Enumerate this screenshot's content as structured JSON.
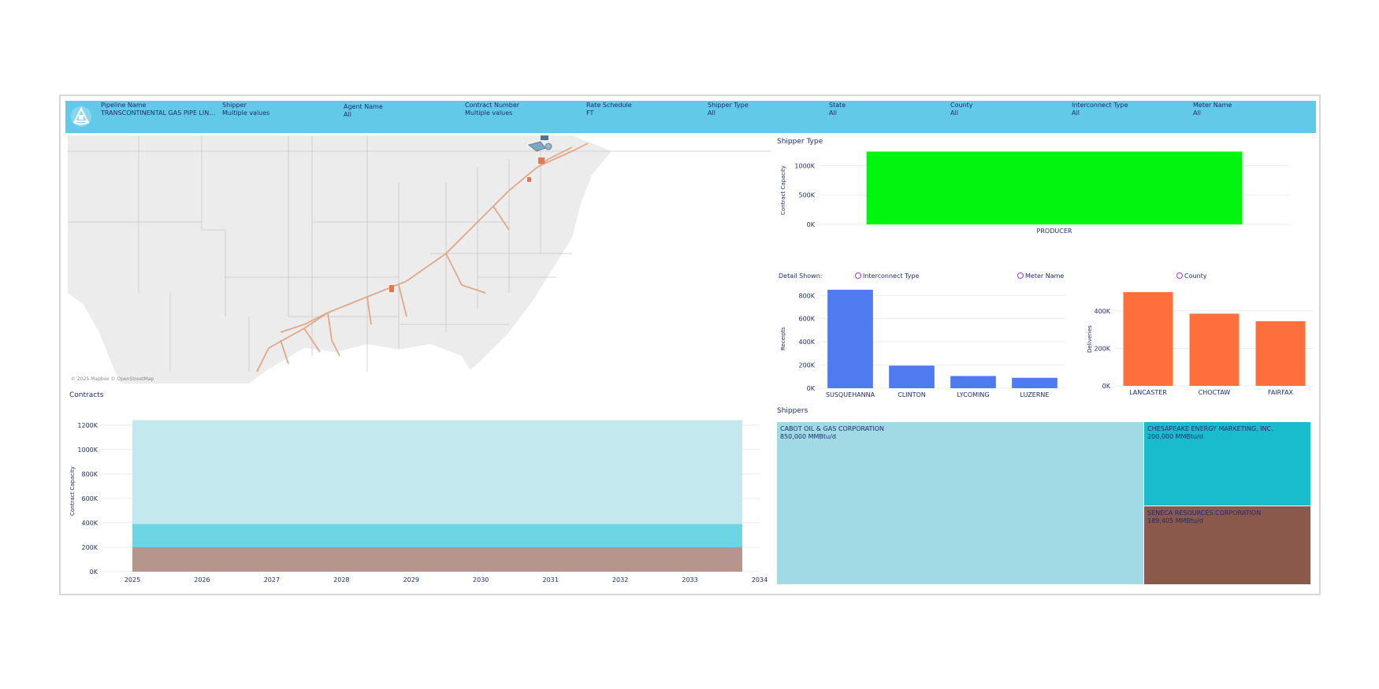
{
  "filters": [
    {
      "label": "Pipeline Name",
      "value": "TRANSCONTINENTAL GAS PIPE LINE ..."
    },
    {
      "label": "Shipper",
      "value": "Multiple values"
    },
    {
      "label": "Agent Name",
      "value": "All"
    },
    {
      "label": "Contract Number",
      "value": "Multiple values"
    },
    {
      "label": "Rate Schedule",
      "value": "FT"
    },
    {
      "label": "Shipper Type",
      "value": "All"
    },
    {
      "label": "State",
      "value": "All"
    },
    {
      "label": "County",
      "value": "All"
    },
    {
      "label": "Interconnect Type",
      "value": "All"
    },
    {
      "label": "Meter Name",
      "value": "All"
    }
  ],
  "map": {
    "attribution": "© 2025 Mapbox © OpenStreetMap"
  },
  "shipper_type": {
    "title": "Shipper Type"
  },
  "detail": {
    "label": "Detail Shown:",
    "options": [
      "Interconnect Type",
      "Meter Name",
      "County"
    ]
  },
  "contracts": {
    "title": "Contracts"
  },
  "shippers": {
    "title": "Shippers",
    "items": [
      {
        "name": "CABOT OIL & GAS CORPORATION",
        "value": "850,000 MMBtu/d"
      },
      {
        "name": "CHESAPEAKE ENERGY MARKETING, INC.",
        "value": "200,000 MMBtu/d"
      },
      {
        "name": "SENECA RESOURCES CORPORATION",
        "value": "189,405 MMBtu/d"
      }
    ],
    "colors": [
      "#a1dae5",
      "#19bccd",
      "#8b584c"
    ]
  },
  "chart_data": [
    {
      "type": "bar",
      "categories": [
        "PRODUCER"
      ],
      "values": [
        1240000
      ],
      "ylabel": "Contract Capacity",
      "yticks": [
        "1000K",
        "500K",
        "0K"
      ],
      "ylim": [
        0,
        1300000
      ],
      "color": "#00f50f"
    },
    {
      "type": "bar",
      "categories": [
        "SUSQUEHANNA",
        "CLINTON",
        "LYCOMING",
        "LUZERNE"
      ],
      "values": [
        850000,
        195000,
        105000,
        90000
      ],
      "ylabel": "Receipts",
      "yticks": [
        "800K",
        "600K",
        "400K",
        "200K",
        "0K"
      ],
      "ylim": [
        0,
        870000
      ],
      "color": "#4f7bf0"
    },
    {
      "type": "bar",
      "categories": [
        "LANCASTER",
        "CHOCTAW",
        "FAIRFAX"
      ],
      "values": [
        500000,
        385000,
        345000
      ],
      "ylabel": "Deliveries",
      "yticks": [
        "400K",
        "200K",
        "0K"
      ],
      "ylim": [
        0,
        500000
      ],
      "color": "#fe6f3c"
    },
    {
      "type": "area",
      "x": [
        "2025",
        "2026",
        "2027",
        "2028",
        "2029",
        "2030",
        "2031",
        "2032",
        "2033",
        "2034"
      ],
      "xlim": [
        2025,
        2034
      ],
      "ylabel": "Contract Capacity",
      "yticks": [
        "1200K",
        "1000K",
        "800K",
        "600K",
        "400K",
        "200K",
        "0K"
      ],
      "ylim": [
        0,
        1250000
      ],
      "series": [
        {
          "values": [
            200000,
            200000
          ],
          "x": [
            2025,
            2033.75
          ],
          "color": "#b6958d"
        },
        {
          "values": [
            390000,
            390000
          ],
          "x": [
            2025,
            2033.75
          ],
          "color": "#6dd5e3"
        },
        {
          "values": [
            1240000,
            1240000
          ],
          "x": [
            2025,
            2033.75
          ],
          "color": "#c3e8ed"
        }
      ]
    }
  ]
}
